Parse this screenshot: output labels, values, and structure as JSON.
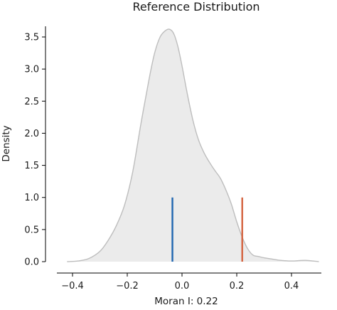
{
  "chart_data": {
    "type": "area",
    "title": "Reference Distribution",
    "xlabel": "Moran I: 0.22",
    "ylabel": "Density",
    "xlim": [
      -0.46,
      0.52
    ],
    "ylim": [
      0,
      3.85
    ],
    "x_ticks": [
      -0.4,
      -0.2,
      0.0,
      0.2,
      0.4
    ],
    "x_tick_labels": [
      "−0.4",
      "−0.2",
      "0.0",
      "0.2",
      "0.4"
    ],
    "y_ticks": [
      0.0,
      0.5,
      1.0,
      1.5,
      2.0,
      2.5,
      3.0,
      3.5
    ],
    "y_tick_labels": [
      "0.0",
      "0.5",
      "1.0",
      "1.5",
      "2.0",
      "2.5",
      "3.0",
      "3.5"
    ],
    "grid": false,
    "density_curve": {
      "x": [
        -0.42,
        -0.38,
        -0.34,
        -0.3,
        -0.27,
        -0.24,
        -0.21,
        -0.18,
        -0.15,
        -0.12,
        -0.1,
        -0.08,
        -0.06,
        -0.045,
        -0.03,
        -0.015,
        0.0,
        0.02,
        0.04,
        0.06,
        0.08,
        0.1,
        0.12,
        0.14,
        0.16,
        0.18,
        0.2,
        0.22,
        0.24,
        0.26,
        0.28,
        0.3,
        0.33,
        0.36,
        0.4,
        0.45,
        0.5
      ],
      "y": [
        0.0,
        0.01,
        0.05,
        0.16,
        0.33,
        0.56,
        0.88,
        1.4,
        2.15,
        2.85,
        3.25,
        3.5,
        3.6,
        3.62,
        3.55,
        3.35,
        3.05,
        2.6,
        2.2,
        1.9,
        1.7,
        1.55,
        1.42,
        1.3,
        1.12,
        0.9,
        0.62,
        0.38,
        0.2,
        0.1,
        0.08,
        0.06,
        0.04,
        0.02,
        0.01,
        0.02,
        0.0
      ],
      "fill_color": "#ebebeb",
      "line_color": "#bdbdbd"
    },
    "reference_lines": [
      {
        "x": -0.035,
        "height": 1.0,
        "color": "#1f66b0"
      },
      {
        "x": 0.22,
        "height": 1.0,
        "color": "#d4623f"
      }
    ]
  }
}
